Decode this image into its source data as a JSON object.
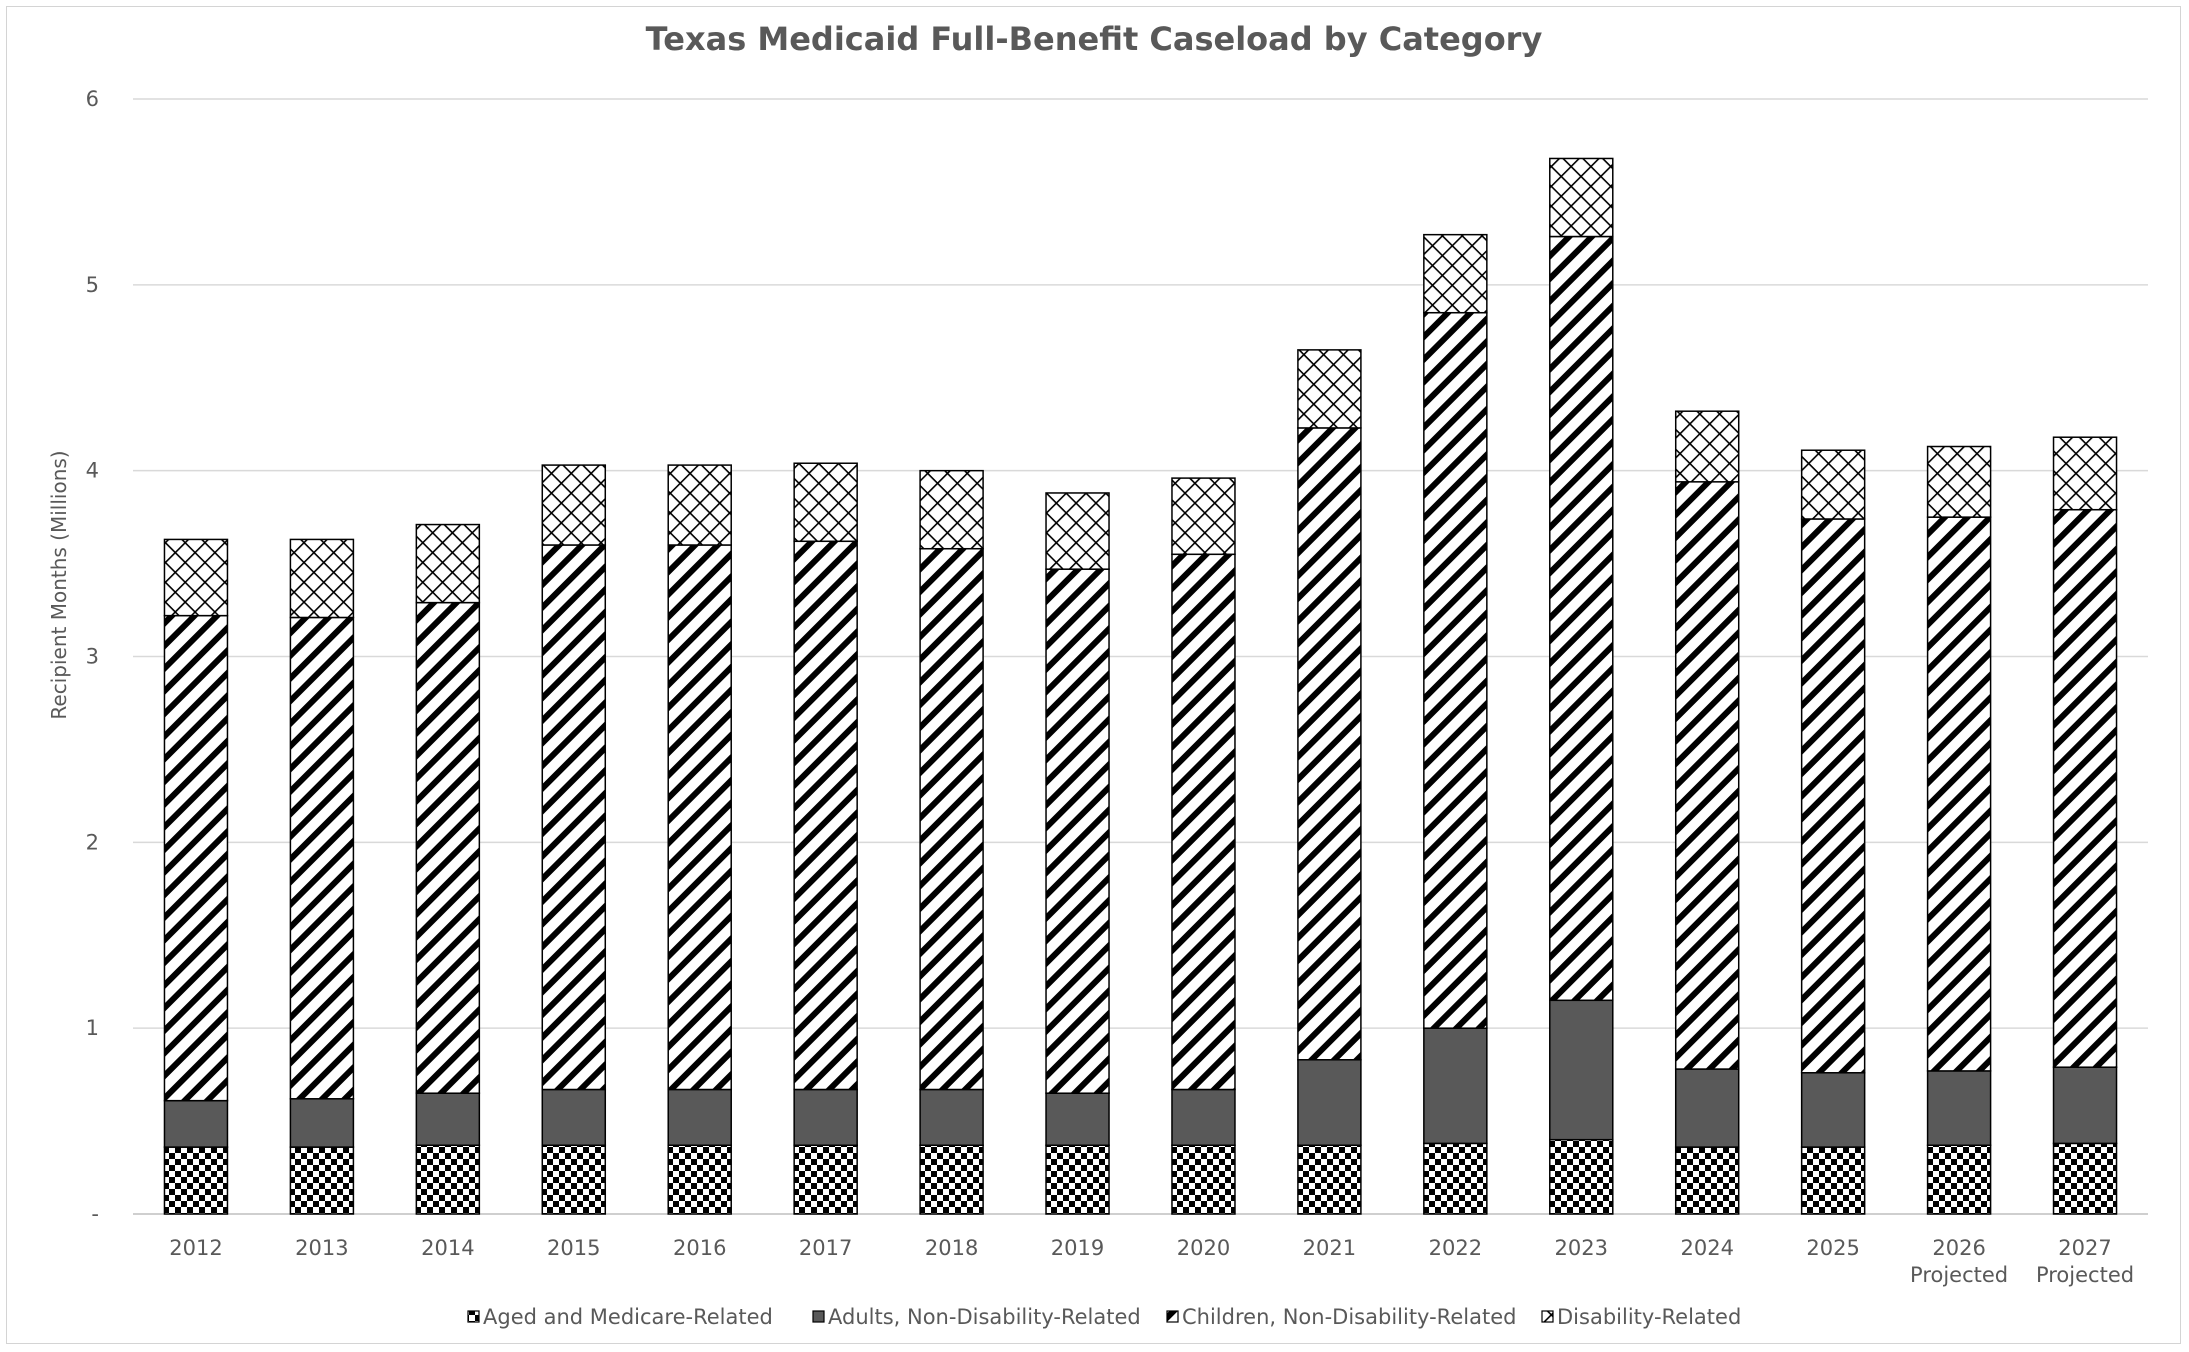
{
  "chart_data": {
    "type": "bar",
    "stacked": true,
    "title": "Texas Medicaid Full-Benefit Caseload by Category",
    "xlabel": "",
    "ylabel": "Recipient Months (Millions)",
    "ylim": [
      0,
      6
    ],
    "yticks": [
      {
        "value": 0,
        "label": "-"
      },
      {
        "value": 1,
        "label": "1"
      },
      {
        "value": 2,
        "label": "2"
      },
      {
        "value": 3,
        "label": "3"
      },
      {
        "value": 4,
        "label": "4"
      },
      {
        "value": 5,
        "label": "5"
      },
      {
        "value": 6,
        "label": "6"
      }
    ],
    "grid": true,
    "legend_position": "bottom",
    "categories": [
      [
        "2012"
      ],
      [
        "2013"
      ],
      [
        "2014"
      ],
      [
        "2015"
      ],
      [
        "2016"
      ],
      [
        "2017"
      ],
      [
        "2018"
      ],
      [
        "2019"
      ],
      [
        "2020"
      ],
      [
        "2021"
      ],
      [
        "2022"
      ],
      [
        "2023"
      ],
      [
        "2024"
      ],
      [
        "2025"
      ],
      [
        "2026",
        "Projected"
      ],
      [
        "2027",
        "Projected"
      ]
    ],
    "series": [
      {
        "name": "Aged and Medicare-Related",
        "pattern": "checker",
        "values": [
          0.36,
          0.36,
          0.37,
          0.37,
          0.37,
          0.37,
          0.37,
          0.37,
          0.37,
          0.37,
          0.38,
          0.4,
          0.36,
          0.36,
          0.37,
          0.38
        ]
      },
      {
        "name": "Adults, Non-Disability-Related",
        "pattern": "solid",
        "values": [
          0.25,
          0.26,
          0.28,
          0.3,
          0.3,
          0.3,
          0.3,
          0.28,
          0.3,
          0.46,
          0.62,
          0.75,
          0.42,
          0.4,
          0.4,
          0.41
        ]
      },
      {
        "name": "Children, Non-Disability-Related",
        "pattern": "diagonal",
        "values": [
          2.61,
          2.59,
          2.64,
          2.93,
          2.93,
          2.95,
          2.91,
          2.82,
          2.88,
          3.4,
          3.85,
          4.11,
          3.16,
          2.98,
          2.98,
          3.0
        ]
      },
      {
        "name": "Disability-Related",
        "pattern": "crosshatch",
        "values": [
          0.41,
          0.42,
          0.42,
          0.43,
          0.43,
          0.42,
          0.42,
          0.41,
          0.41,
          0.42,
          0.42,
          0.42,
          0.38,
          0.37,
          0.38,
          0.39
        ]
      }
    ]
  }
}
